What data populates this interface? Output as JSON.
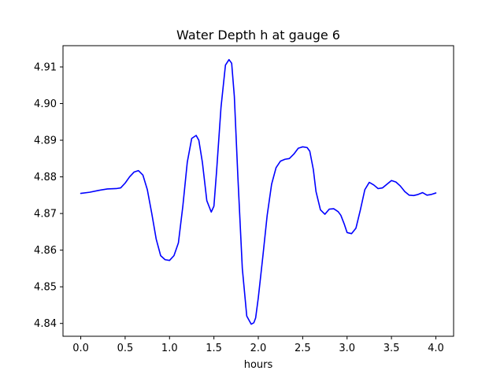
{
  "chart_data": {
    "type": "line",
    "title": "Water Depth h at gauge 6",
    "xlabel": "hours",
    "ylabel": "",
    "xlim": [
      -0.2,
      4.2
    ],
    "ylim": [
      4.8365,
      4.9158
    ],
    "xticks": [
      0.0,
      0.5,
      1.0,
      1.5,
      2.0,
      2.5,
      3.0,
      3.5,
      4.0
    ],
    "xtick_labels": [
      "0.0",
      "0.5",
      "1.0",
      "1.5",
      "2.0",
      "2.5",
      "3.0",
      "3.5",
      "4.0"
    ],
    "yticks": [
      4.84,
      4.85,
      4.86,
      4.87,
      4.88,
      4.89,
      4.9,
      4.91
    ],
    "ytick_labels": [
      "4.84",
      "4.85",
      "4.86",
      "4.87",
      "4.88",
      "4.89",
      "4.90",
      "4.91"
    ],
    "grid": false,
    "legend": false,
    "series": [
      {
        "color": "#0000ff",
        "x": [
          0.0,
          0.1,
          0.2,
          0.3,
          0.4,
          0.45,
          0.5,
          0.55,
          0.6,
          0.65,
          0.7,
          0.75,
          0.8,
          0.85,
          0.9,
          0.95,
          1.0,
          1.05,
          1.1,
          1.15,
          1.2,
          1.25,
          1.3,
          1.33,
          1.37,
          1.42,
          1.47,
          1.5,
          1.53,
          1.58,
          1.63,
          1.67,
          1.7,
          1.73,
          1.77,
          1.82,
          1.87,
          1.92,
          1.95,
          1.97,
          2.0,
          2.05,
          2.1,
          2.15,
          2.2,
          2.25,
          2.3,
          2.35,
          2.4,
          2.45,
          2.5,
          2.55,
          2.58,
          2.62,
          2.65,
          2.7,
          2.75,
          2.8,
          2.85,
          2.9,
          2.93,
          2.97,
          3.0,
          3.05,
          3.1,
          3.15,
          3.2,
          3.25,
          3.3,
          3.35,
          3.4,
          3.45,
          3.5,
          3.55,
          3.6,
          3.65,
          3.7,
          3.75,
          3.8,
          3.85,
          3.9,
          3.95,
          4.0
        ],
        "y": [
          4.8755,
          4.8758,
          4.8763,
          4.8767,
          4.8768,
          4.877,
          4.8783,
          4.88,
          4.8813,
          4.8817,
          4.8805,
          4.8765,
          4.87,
          4.863,
          4.8585,
          4.8574,
          4.8572,
          4.8585,
          4.862,
          4.872,
          4.884,
          4.8905,
          4.8913,
          4.89,
          4.884,
          4.8735,
          4.8704,
          4.872,
          4.8815,
          4.899,
          4.9105,
          4.912,
          4.911,
          4.902,
          4.88,
          4.855,
          4.842,
          4.8398,
          4.8402,
          4.8415,
          4.847,
          4.858,
          4.8695,
          4.878,
          4.8825,
          4.8843,
          4.8848,
          4.885,
          4.8862,
          4.8878,
          4.8882,
          4.888,
          4.887,
          4.882,
          4.876,
          4.871,
          4.8698,
          4.8712,
          4.8713,
          4.8705,
          4.8695,
          4.867,
          4.8648,
          4.8645,
          4.866,
          4.871,
          4.8765,
          4.8785,
          4.8778,
          4.8768,
          4.877,
          4.878,
          4.879,
          4.8786,
          4.8775,
          4.876,
          4.875,
          4.8749,
          4.8752,
          4.8757,
          4.875,
          4.8752,
          4.8756
        ]
      }
    ]
  }
}
